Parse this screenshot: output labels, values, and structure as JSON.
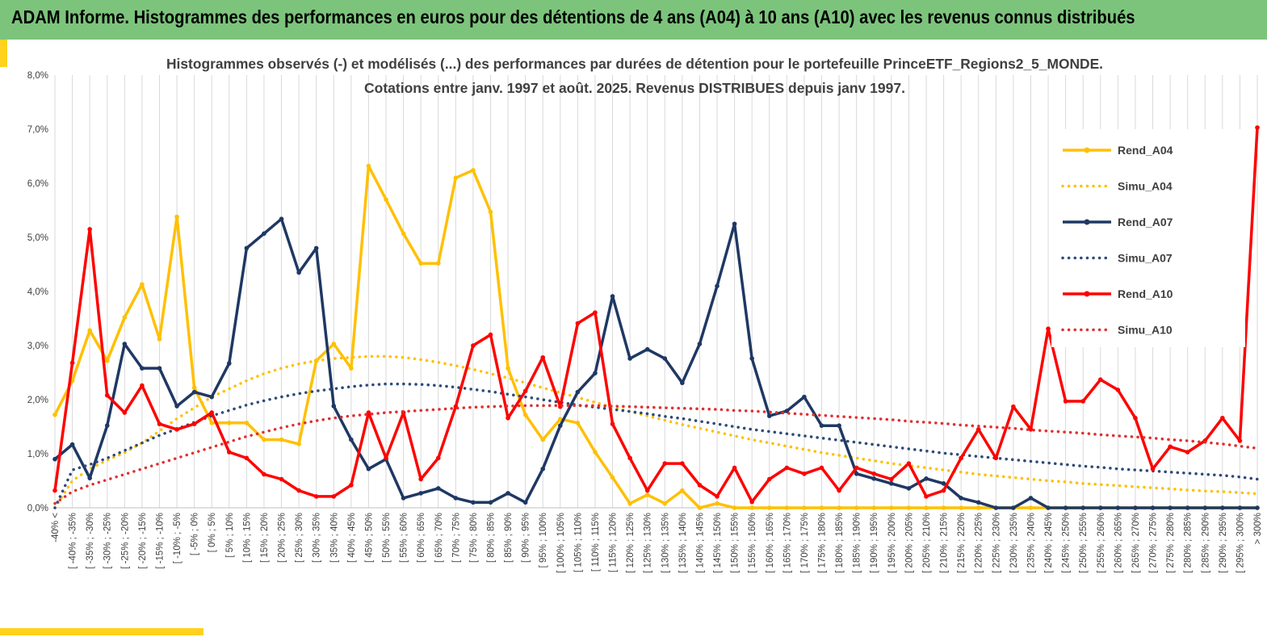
{
  "header": {
    "title": "ADAM Informe. Histogrammes des performances en euros pour des détentions de 4 ans (A04) à 10 ans (A10) avec les revenus connus distribués",
    "accent_color": "#7cc47c",
    "bar_color": "#ffd21e"
  },
  "chart_data": {
    "type": "line",
    "title_line1": "Histogrammes observés (-) et modélisés (...) des performances par durées de détention pour le portefeuille PrinceETF_Regions2_5_MONDE.",
    "title_line2": "Cotations entre janv. 1997 et août. 2025. Revenus DISTRIBUES depuis janv 1997.",
    "y_ticks": [
      "0,0%",
      "1,0%",
      "2,0%",
      "3,0%",
      "4,0%",
      "5,0%",
      "6,0%",
      "7,0%",
      "8,0%"
    ],
    "ylim": [
      0,
      8
    ],
    "grid": "vertical",
    "legend_position": "right",
    "categories": [
      "-40% <",
      "[ -40% ; -35%",
      "[ -35% ; -30%",
      "[ -30% ; -25%",
      "[ -25% ; -20%",
      "[ -20% ; -15%",
      "[ -15% ; -10%",
      "[ -10% ; -5%",
      "[ -5% ; 0%",
      "[ 0% ; 5%",
      "[ 5% ; 10%",
      "[ 10% ; 15%",
      "[ 15% ; 20%",
      "[ 20% ; 25%",
      "[ 25% ; 30%",
      "[ 30% ; 35%",
      "[ 35% ; 40%",
      "[ 40% ; 45%",
      "[ 45% ; 50%",
      "[ 50% ; 55%",
      "[ 55% ; 60%",
      "[ 60% ; 65%",
      "[ 65% ; 70%",
      "[ 70% ; 75%",
      "[ 75% ; 80%",
      "[ 80% ; 85%",
      "[ 85% ; 90%",
      "[ 90% ; 95%",
      "[ 95% ; 100%",
      "[ 100% ; 105%",
      "[ 105% ; 110%",
      "[ 110% ; 115%",
      "[ 115% ; 120%",
      "[ 120% ; 125%",
      "[ 125% ; 130%",
      "[ 130% ; 135%",
      "[ 135% ; 140%",
      "[ 140% ; 145%",
      "[ 145% ; 150%",
      "[ 150% ; 155%",
      "[ 155% ; 160%",
      "[ 160% ; 165%",
      "[ 165% ; 170%",
      "[ 170% ; 175%",
      "[ 175% ; 180%",
      "[ 180% ; 185%",
      "[ 185% ; 190%",
      "[ 190% ; 195%",
      "[ 195% ; 200%",
      "[ 200% ; 205%",
      "[ 205% ; 210%",
      "[ 210% ; 215%",
      "[ 215% ; 220%",
      "[ 220% ; 225%",
      "[ 225% ; 230%",
      "[ 230% ; 235%",
      "[ 235% ; 240%",
      "[ 240% ; 245%",
      "[ 245% ; 250%",
      "[ 250% ; 255%",
      "[ 255% ; 260%",
      "[ 260% ; 265%",
      "[ 265% ; 270%",
      "[ 270% ; 275%",
      "[ 275% ; 280%",
      "[ 280% ; 285%",
      "[ 285% ; 290%",
      "[ 290% ; 295%",
      "[ 295% ; 300%",
      "> 300%"
    ],
    "series": [
      {
        "name": "Rend_A04",
        "style": "solid",
        "color": "#ffc000",
        "values": [
          1.72,
          2.35,
          3.28,
          2.72,
          3.52,
          4.13,
          3.12,
          5.38,
          2.22,
          1.57,
          1.57,
          1.57,
          1.26,
          1.26,
          1.18,
          2.72,
          3.03,
          2.58,
          6.32,
          5.7,
          5.07,
          4.52,
          4.52,
          6.1,
          6.24,
          5.47,
          2.58,
          1.72,
          1.26,
          1.64,
          1.57,
          1.03,
          0.56,
          0.08,
          0.24,
          0.08,
          0.32,
          0.0,
          0.08,
          0.0,
          0.0,
          0.0,
          0.0,
          0.0,
          0.0,
          0.0,
          0.0,
          0.0,
          0.0,
          0.0,
          0.0,
          0.0,
          0.0,
          0.0,
          0.0,
          0.0,
          0.0,
          0.0,
          0.0,
          0.0,
          0.0,
          0.0,
          0.0,
          0.0,
          0.0,
          0.0,
          0.0,
          0.0,
          0.0,
          0.0
        ]
      },
      {
        "name": "Simu_A04",
        "style": "dotted",
        "color": "#ffc000",
        "values": [
          0.0,
          0.5,
          0.72,
          0.88,
          1.02,
          1.2,
          1.42,
          1.65,
          1.85,
          2.05,
          2.2,
          2.35,
          2.48,
          2.58,
          2.66,
          2.72,
          2.76,
          2.78,
          2.8,
          2.8,
          2.78,
          2.74,
          2.69,
          2.63,
          2.56,
          2.48,
          2.4,
          2.31,
          2.22,
          2.13,
          2.04,
          1.95,
          1.86,
          1.78,
          1.7,
          1.62,
          1.54,
          1.47,
          1.4,
          1.33,
          1.26,
          1.2,
          1.14,
          1.08,
          1.02,
          0.97,
          0.92,
          0.87,
          0.82,
          0.78,
          0.74,
          0.7,
          0.66,
          0.62,
          0.59,
          0.56,
          0.53,
          0.5,
          0.48,
          0.45,
          0.43,
          0.41,
          0.39,
          0.37,
          0.35,
          0.33,
          0.31,
          0.3,
          0.28,
          0.26
        ]
      },
      {
        "name": "Rend_A07",
        "style": "solid",
        "color": "#1f3864",
        "values": [
          0.9,
          1.17,
          0.55,
          1.52,
          3.03,
          2.58,
          2.58,
          1.88,
          2.14,
          2.05,
          2.67,
          4.8,
          5.07,
          5.34,
          4.35,
          4.8,
          1.88,
          1.26,
          0.72,
          0.9,
          0.18,
          0.27,
          0.36,
          0.18,
          0.1,
          0.1,
          0.27,
          0.1,
          0.72,
          1.52,
          2.14,
          2.49,
          3.91,
          2.76,
          2.93,
          2.76,
          2.31,
          3.03,
          4.1,
          5.25,
          2.76,
          1.7,
          1.79,
          2.05,
          1.52,
          1.52,
          0.63,
          0.54,
          0.45,
          0.36,
          0.54,
          0.45,
          0.18,
          0.1,
          0.0,
          0.0,
          0.18,
          0.0,
          0.0,
          0.0,
          0.0,
          0.0,
          0.0,
          0.0,
          0.0,
          0.0,
          0.0,
          0.0,
          0.0,
          0.0
        ]
      },
      {
        "name": "Simu_A07",
        "style": "dotted",
        "color": "#2e4a7a",
        "values": [
          0.0,
          0.7,
          0.8,
          0.92,
          1.06,
          1.2,
          1.34,
          1.46,
          1.58,
          1.7,
          1.8,
          1.9,
          1.98,
          2.05,
          2.11,
          2.16,
          2.2,
          2.24,
          2.27,
          2.29,
          2.29,
          2.28,
          2.26,
          2.23,
          2.19,
          2.15,
          2.1,
          2.05,
          2.0,
          1.95,
          1.9,
          1.86,
          1.82,
          1.78,
          1.74,
          1.69,
          1.65,
          1.6,
          1.55,
          1.5,
          1.45,
          1.41,
          1.37,
          1.33,
          1.29,
          1.25,
          1.21,
          1.17,
          1.13,
          1.09,
          1.05,
          1.01,
          0.98,
          0.95,
          0.92,
          0.89,
          0.86,
          0.83,
          0.8,
          0.77,
          0.75,
          0.72,
          0.7,
          0.68,
          0.66,
          0.64,
          0.62,
          0.6,
          0.57,
          0.53
        ]
      },
      {
        "name": "Rend_A10",
        "style": "solid",
        "color": "#ff0000",
        "values": [
          0.32,
          2.68,
          5.15,
          2.08,
          1.76,
          2.26,
          1.55,
          1.45,
          1.55,
          1.76,
          1.03,
          0.92,
          0.62,
          0.53,
          0.32,
          0.21,
          0.21,
          0.42,
          1.76,
          0.92,
          1.76,
          0.53,
          0.92,
          1.87,
          3.0,
          3.2,
          1.66,
          2.16,
          2.78,
          1.87,
          3.41,
          3.61,
          1.55,
          0.92,
          0.32,
          0.82,
          0.82,
          0.42,
          0.21,
          0.74,
          0.11,
          0.53,
          0.74,
          0.63,
          0.74,
          0.32,
          0.74,
          0.63,
          0.53,
          0.82,
          0.21,
          0.32,
          0.92,
          1.45,
          0.92,
          1.87,
          1.45,
          3.31,
          1.97,
          1.97,
          2.37,
          2.18,
          1.66,
          0.72,
          1.13,
          1.03,
          1.24,
          1.66,
          1.24,
          7.03
        ]
      },
      {
        "name": "Simu_A10",
        "style": "dotted",
        "color": "#e03030",
        "values": [
          0.08,
          0.3,
          0.42,
          0.52,
          0.62,
          0.72,
          0.82,
          0.92,
          1.02,
          1.12,
          1.22,
          1.32,
          1.4,
          1.48,
          1.55,
          1.61,
          1.66,
          1.7,
          1.73,
          1.76,
          1.78,
          1.8,
          1.82,
          1.84,
          1.86,
          1.87,
          1.88,
          1.89,
          1.89,
          1.89,
          1.89,
          1.89,
          1.88,
          1.87,
          1.86,
          1.85,
          1.84,
          1.83,
          1.82,
          1.8,
          1.79,
          1.77,
          1.75,
          1.73,
          1.71,
          1.69,
          1.67,
          1.65,
          1.63,
          1.6,
          1.58,
          1.56,
          1.53,
          1.51,
          1.49,
          1.47,
          1.44,
          1.42,
          1.4,
          1.38,
          1.35,
          1.33,
          1.31,
          1.29,
          1.26,
          1.24,
          1.21,
          1.18,
          1.14,
          1.1
        ]
      }
    ]
  }
}
